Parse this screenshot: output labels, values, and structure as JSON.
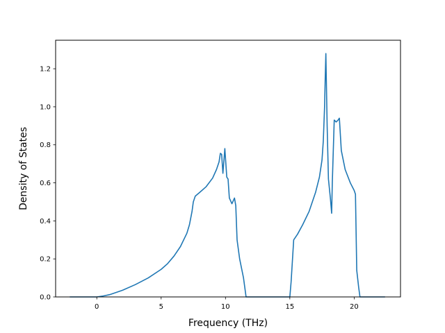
{
  "chart_data": {
    "type": "line",
    "title": "",
    "xlabel": "Frequency (THz)",
    "ylabel": "Density of States",
    "xlim": [
      -3.2,
      23.6
    ],
    "ylim": [
      0.0,
      1.35
    ],
    "xticks": [
      0,
      5,
      10,
      15,
      20
    ],
    "yticks": [
      0.0,
      0.2,
      0.4,
      0.6,
      0.8,
      1.0,
      1.2
    ],
    "xtick_labels": [
      "0",
      "5",
      "10",
      "15",
      "20"
    ],
    "ytick_labels": [
      "0.0",
      "0.2",
      "0.4",
      "0.6",
      "0.8",
      "1.0",
      "1.2"
    ],
    "grid": false,
    "legend": "none",
    "series": [
      {
        "color": "#1f77b4",
        "x": [
          -2.1,
          -1.0,
          0.0,
          0.5,
          1.0,
          2.0,
          3.0,
          4.0,
          5.0,
          5.5,
          6.0,
          6.5,
          7.0,
          7.2,
          7.4,
          7.5,
          7.65,
          8.0,
          8.5,
          9.0,
          9.3,
          9.5,
          9.6,
          9.7,
          9.8,
          9.95,
          10.1,
          10.2,
          10.3,
          10.5,
          10.7,
          10.8,
          10.9,
          11.1,
          11.4,
          11.6,
          15.0,
          15.1,
          15.3,
          15.6,
          16.0,
          16.5,
          17.0,
          17.3,
          17.5,
          17.6,
          17.7,
          17.75,
          17.8,
          17.9,
          18.0,
          18.15,
          18.25,
          18.3,
          18.45,
          18.6,
          18.75,
          18.85,
          19.0,
          19.3,
          19.7,
          20.0,
          20.1,
          20.2,
          20.35,
          20.45,
          22.4
        ],
        "y": [
          0.0,
          0.0,
          0.0,
          0.005,
          0.012,
          0.035,
          0.065,
          0.1,
          0.145,
          0.175,
          0.215,
          0.265,
          0.335,
          0.38,
          0.45,
          0.5,
          0.53,
          0.55,
          0.58,
          0.625,
          0.67,
          0.71,
          0.755,
          0.75,
          0.65,
          0.78,
          0.63,
          0.62,
          0.52,
          0.49,
          0.52,
          0.48,
          0.3,
          0.2,
          0.1,
          0.0,
          0.0,
          0.08,
          0.3,
          0.33,
          0.38,
          0.45,
          0.55,
          0.63,
          0.72,
          0.82,
          1.0,
          1.15,
          1.28,
          0.9,
          0.62,
          0.52,
          0.44,
          0.6,
          0.93,
          0.92,
          0.93,
          0.94,
          0.77,
          0.67,
          0.6,
          0.56,
          0.54,
          0.14,
          0.05,
          0.0,
          0.0
        ]
      }
    ]
  }
}
